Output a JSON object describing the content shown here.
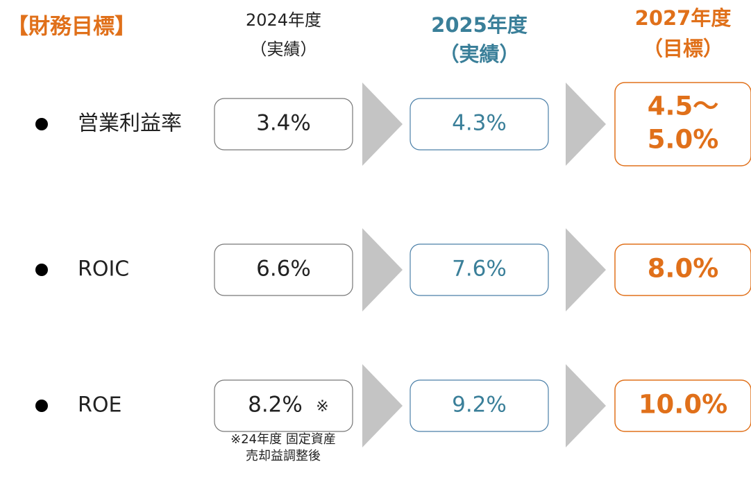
{
  "title": "【財務目標】",
  "columns": [
    {
      "year": "2024年度",
      "kind": "（実績）"
    },
    {
      "year": "2025年度",
      "kind": "（実績）"
    },
    {
      "year": "2027年度",
      "kind": "（目標）"
    }
  ],
  "rows": [
    {
      "label": "営業利益率",
      "values": [
        "3.4%",
        "4.3%",
        [
          "4.5～",
          "5.0%"
        ]
      ]
    },
    {
      "label": "ROIC",
      "values": [
        "6.6%",
        "7.6%",
        "8.0%"
      ]
    },
    {
      "label": "ROE",
      "values": [
        "8.2%",
        "9.2%",
        "10.0%"
      ],
      "mark": "※"
    }
  ],
  "footnote": [
    "※24年度 固定資産",
    "売却益調整後"
  ]
}
